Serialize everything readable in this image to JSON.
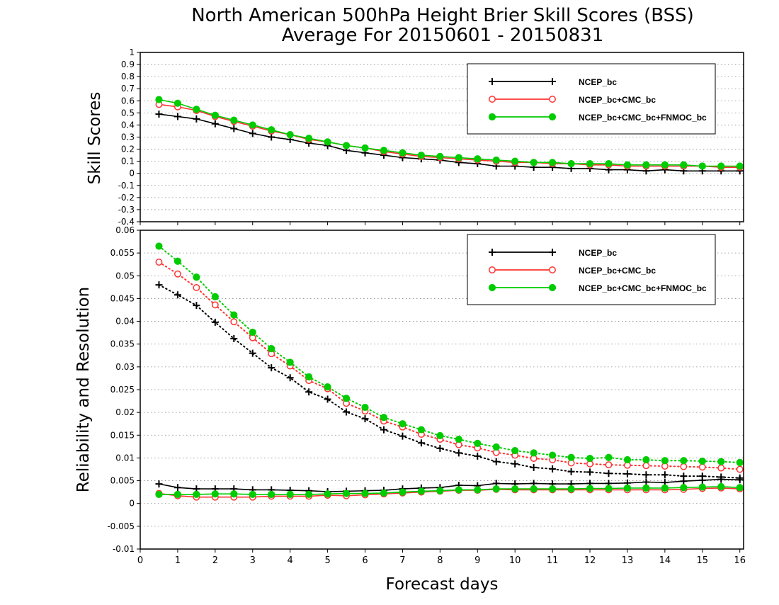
{
  "title_line1": "North American 500hPa Height Brier Skill Scores (BSS)",
  "title_line2": "Average For 20150601 - 20150831",
  "xlabel": "Forecast days",
  "colors": {
    "ncep": "#000000",
    "cmc": "#ff3333",
    "fnmoc": "#00cc00",
    "grid": "#888888"
  },
  "chart_data": [
    {
      "type": "line",
      "ylabel": "Skill Scores",
      "xlim": [
        0,
        16.1
      ],
      "ylim": [
        -0.4,
        1.0
      ],
      "xticks": [
        "0",
        "1",
        "2",
        "3",
        "4",
        "5",
        "6",
        "7",
        "8",
        "9",
        "10",
        "11",
        "12",
        "13",
        "14",
        "15",
        "16"
      ],
      "yticks": [
        "-0.4",
        "-0.3",
        "-0.2",
        "-0.1",
        "0",
        "0.1",
        "0.2",
        "0.3",
        "0.4",
        "0.5",
        "0.6",
        "0.7",
        "0.8",
        "0.9",
        "1"
      ],
      "grid": true,
      "legend_position": "top-right",
      "x": [
        0.5,
        1,
        1.5,
        2,
        2.5,
        3,
        3.5,
        4,
        4.5,
        5,
        5.5,
        6,
        6.5,
        7,
        7.5,
        8,
        8.5,
        9,
        9.5,
        10,
        10.5,
        11,
        11.5,
        12,
        12.5,
        13,
        13.5,
        14,
        14.5,
        15,
        15.5,
        16
      ],
      "series": [
        {
          "name": "NCEP_bc",
          "marker": "plus",
          "color_key": "ncep",
          "style": "solid",
          "values": [
            0.49,
            0.47,
            0.45,
            0.41,
            0.37,
            0.33,
            0.3,
            0.28,
            0.25,
            0.23,
            0.19,
            0.17,
            0.15,
            0.13,
            0.12,
            0.11,
            0.09,
            0.08,
            0.06,
            0.06,
            0.05,
            0.05,
            0.04,
            0.04,
            0.03,
            0.03,
            0.02,
            0.03,
            0.02,
            0.02,
            0.02,
            0.02
          ]
        },
        {
          "name": "NCEP_bc+CMC_bc",
          "marker": "circle-open",
          "color_key": "cmc",
          "style": "solid",
          "values": [
            0.57,
            0.55,
            0.52,
            0.47,
            0.43,
            0.39,
            0.35,
            0.32,
            0.28,
            0.26,
            0.23,
            0.21,
            0.18,
            0.16,
            0.14,
            0.13,
            0.12,
            0.11,
            0.1,
            0.09,
            0.09,
            0.08,
            0.08,
            0.07,
            0.07,
            0.06,
            0.06,
            0.06,
            0.06,
            0.06,
            0.05,
            0.05
          ]
        },
        {
          "name": "NCEP_bc+CMC_bc+FNMOC_bc",
          "marker": "circle-filled",
          "color_key": "fnmoc",
          "style": "solid",
          "values": [
            0.61,
            0.58,
            0.53,
            0.48,
            0.44,
            0.4,
            0.36,
            0.32,
            0.29,
            0.26,
            0.23,
            0.21,
            0.19,
            0.17,
            0.15,
            0.14,
            0.13,
            0.12,
            0.11,
            0.1,
            0.09,
            0.09,
            0.08,
            0.08,
            0.08,
            0.07,
            0.07,
            0.07,
            0.07,
            0.06,
            0.06,
            0.06
          ]
        }
      ],
      "legend": [
        "NCEP_bc",
        "NCEP_bc+CMC_bc",
        "NCEP_bc+CMC_bc+FNMOC_bc"
      ]
    },
    {
      "type": "line",
      "ylabel": "Reliability and Resolution",
      "xlim": [
        0,
        16.1
      ],
      "ylim": [
        -0.01,
        0.06
      ],
      "xticks": [
        "0",
        "1",
        "2",
        "3",
        "4",
        "5",
        "6",
        "7",
        "8",
        "9",
        "10",
        "11",
        "12",
        "13",
        "14",
        "15",
        "16"
      ],
      "yticks": [
        "-0.01",
        "-0.005",
        "0",
        "0.005",
        "0.01",
        "0.015",
        "0.02",
        "0.025",
        "0.03",
        "0.035",
        "0.04",
        "0.045",
        "0.05",
        "0.055",
        "0.06"
      ],
      "grid": true,
      "legend_position": "top-right",
      "x": [
        0.5,
        1,
        1.5,
        2,
        2.5,
        3,
        3.5,
        4,
        4.5,
        5,
        5.5,
        6,
        6.5,
        7,
        7.5,
        8,
        8.5,
        9,
        9.5,
        10,
        10.5,
        11,
        11.5,
        12,
        12.5,
        13,
        13.5,
        14,
        14.5,
        15,
        15.5,
        16
      ],
      "series": [
        {
          "name": "NCEP_bc",
          "marker": "plus",
          "color_key": "ncep",
          "style": "dotted",
          "role": "resolution",
          "values": [
            0.048,
            0.0458,
            0.0435,
            0.0398,
            0.0362,
            0.033,
            0.0298,
            0.0276,
            0.0245,
            0.0229,
            0.0201,
            0.0186,
            0.0162,
            0.0148,
            0.0133,
            0.0121,
            0.0111,
            0.0104,
            0.0092,
            0.0087,
            0.0079,
            0.0076,
            0.007,
            0.0069,
            0.0066,
            0.0065,
            0.0063,
            0.0063,
            0.006,
            0.006,
            0.0058,
            0.0056
          ]
        },
        {
          "name": "NCEP_bc+CMC_bc",
          "marker": "circle-open",
          "color_key": "cmc",
          "style": "dotted",
          "role": "resolution",
          "values": [
            0.053,
            0.0504,
            0.0474,
            0.0436,
            0.0399,
            0.0364,
            0.0329,
            0.0302,
            0.027,
            0.0252,
            0.022,
            0.0203,
            0.0181,
            0.0168,
            0.0152,
            0.0141,
            0.0129,
            0.0122,
            0.0112,
            0.0106,
            0.0099,
            0.0096,
            0.0089,
            0.0087,
            0.0085,
            0.0084,
            0.0083,
            0.0082,
            0.0081,
            0.008,
            0.0078,
            0.0075
          ]
        },
        {
          "name": "NCEP_bc+CMC_bc+FNMOC_bc",
          "marker": "circle-filled",
          "color_key": "fnmoc",
          "style": "dotted",
          "role": "resolution",
          "values": [
            0.0565,
            0.0532,
            0.0497,
            0.0454,
            0.0414,
            0.0376,
            0.034,
            0.031,
            0.0278,
            0.0256,
            0.0231,
            0.0211,
            0.0189,
            0.0175,
            0.0162,
            0.0149,
            0.0141,
            0.0132,
            0.0124,
            0.0116,
            0.0111,
            0.0106,
            0.0101,
            0.0099,
            0.0101,
            0.0096,
            0.0096,
            0.0094,
            0.0094,
            0.0093,
            0.0092,
            0.009
          ]
        },
        {
          "name": "NCEP_bc",
          "marker": "plus",
          "color_key": "ncep",
          "style": "solid",
          "role": "reliability",
          "values": [
            0.0043,
            0.0035,
            0.0032,
            0.0032,
            0.0032,
            0.003,
            0.003,
            0.0029,
            0.0028,
            0.0026,
            0.0027,
            0.0028,
            0.0029,
            0.0032,
            0.0034,
            0.0035,
            0.004,
            0.0039,
            0.0044,
            0.0043,
            0.0044,
            0.0043,
            0.0043,
            0.0044,
            0.0044,
            0.0045,
            0.0047,
            0.0046,
            0.0049,
            0.0051,
            0.0053,
            0.0052
          ]
        },
        {
          "name": "NCEP_bc+CMC_bc",
          "marker": "circle-open",
          "color_key": "cmc",
          "style": "solid",
          "role": "reliability",
          "values": [
            0.0022,
            0.0017,
            0.0014,
            0.0014,
            0.0014,
            0.0014,
            0.0016,
            0.0016,
            0.0016,
            0.0018,
            0.0017,
            0.0019,
            0.0021,
            0.0023,
            0.0025,
            0.0027,
            0.0029,
            0.0029,
            0.0031,
            0.003,
            0.003,
            0.003,
            0.003,
            0.003,
            0.003,
            0.003,
            0.003,
            0.003,
            0.0031,
            0.0033,
            0.0034,
            0.0032
          ]
        },
        {
          "name": "NCEP_bc+CMC_bc+FNMOC_bc",
          "marker": "circle-filled",
          "color_key": "fnmoc",
          "style": "solid",
          "role": "reliability",
          "values": [
            0.002,
            0.002,
            0.002,
            0.0021,
            0.0021,
            0.002,
            0.002,
            0.002,
            0.002,
            0.0021,
            0.0022,
            0.0022,
            0.0023,
            0.0025,
            0.0027,
            0.0028,
            0.003,
            0.003,
            0.0032,
            0.0032,
            0.0032,
            0.0032,
            0.0032,
            0.0033,
            0.0033,
            0.0034,
            0.0034,
            0.0034,
            0.0035,
            0.0036,
            0.0037,
            0.0035
          ]
        }
      ],
      "legend": [
        "NCEP_bc",
        "NCEP_bc+CMC_bc",
        "NCEP_bc+CMC_bc+FNMOC_bc"
      ]
    }
  ]
}
